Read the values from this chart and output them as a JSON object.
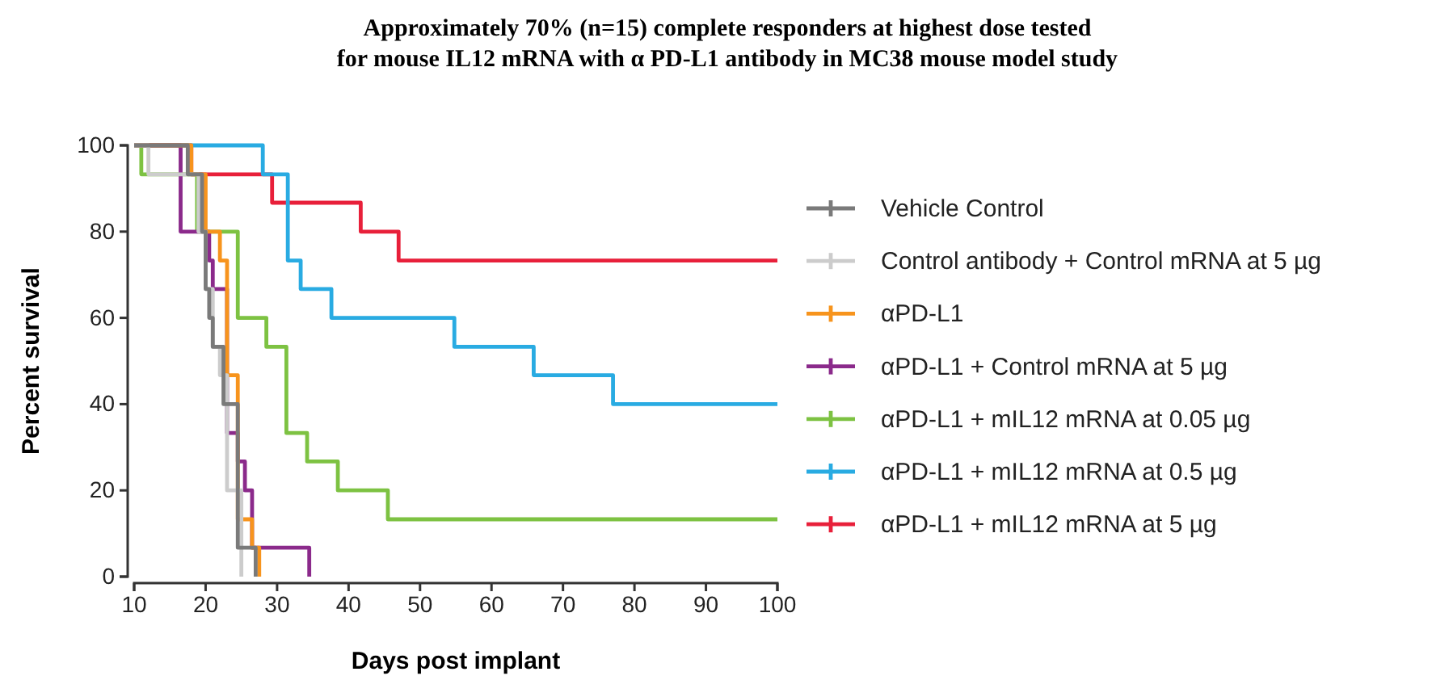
{
  "chart_data": {
    "type": "step",
    "title": "Approximately 70% (n=15) complete responders at highest dose tested\nfor mouse IL12 mRNA with α PD-L1 antibody in MC38 mouse model study",
    "xlabel": "Days post implant",
    "ylabel": "Percent survival",
    "xlim": [
      10,
      100
    ],
    "xticks": [
      10,
      20,
      30,
      40,
      50,
      60,
      70,
      80,
      90,
      100
    ],
    "ylim": [
      0,
      100
    ],
    "yticks": [
      0,
      20,
      40,
      60,
      80,
      100
    ],
    "legend": "right",
    "grid": false,
    "line_style": "solid",
    "series": [
      {
        "name": "Vehicle Control",
        "color": "#7a7a7a",
        "x": [
          10,
          17.5,
          19.5,
          20,
          20.5,
          21,
          22.5,
          24.5,
          27
        ],
        "values": [
          100,
          93.3,
          80,
          66.7,
          60,
          53.3,
          40,
          6.7,
          0
        ]
      },
      {
        "name": "Control antibody + Control mRNA at 5 µg",
        "color": "#cccccc",
        "x": [
          10,
          12,
          19,
          20,
          21,
          22,
          23,
          25
        ],
        "values": [
          100,
          93.3,
          80,
          66.7,
          53.3,
          46.7,
          20,
          0
        ]
      },
      {
        "name": "αPD-L1",
        "color": "#f7941d",
        "x": [
          10,
          18,
          20,
          22,
          23,
          24.5,
          26.5,
          27.5
        ],
        "values": [
          100,
          93.3,
          80,
          73.3,
          46.7,
          13.3,
          6.7,
          0
        ]
      },
      {
        "name": "αPD-L1 + Control mRNA at 5 µg",
        "color": "#8b2a8b",
        "x": [
          10,
          16.5,
          20.5,
          21,
          23,
          24.5,
          25.5,
          26.5,
          34.5
        ],
        "values": [
          100,
          80,
          73.3,
          66.7,
          33.3,
          26.7,
          20,
          6.7,
          0
        ]
      },
      {
        "name": "αPD-L1 + mIL12 mRNA at 0.05 µg",
        "color": "#7dc242",
        "x": [
          10,
          11,
          18.8,
          24.5,
          28.5,
          31.3,
          34.2,
          38.5,
          45.5,
          100
        ],
        "values": [
          100,
          93.3,
          80,
          60,
          53.3,
          33.3,
          26.7,
          20,
          13.3,
          13.3
        ]
      },
      {
        "name": "αPD-L1 + mIL12 mRNA at 0.5 µg",
        "color": "#29abe2",
        "x": [
          10,
          28,
          31.5,
          33.3,
          37.6,
          54.8,
          65.9,
          77,
          100
        ],
        "values": [
          100,
          93.3,
          73.3,
          66.7,
          60,
          53.3,
          46.7,
          40,
          40
        ]
      },
      {
        "name": "αPD-L1 + mIL12 mRNA at 5 µg",
        "color": "#e8203a",
        "x": [
          10,
          18,
          29.3,
          41.7,
          47,
          100
        ],
        "values": [
          100,
          93.3,
          86.7,
          80,
          73.3,
          73.3
        ]
      }
    ]
  }
}
